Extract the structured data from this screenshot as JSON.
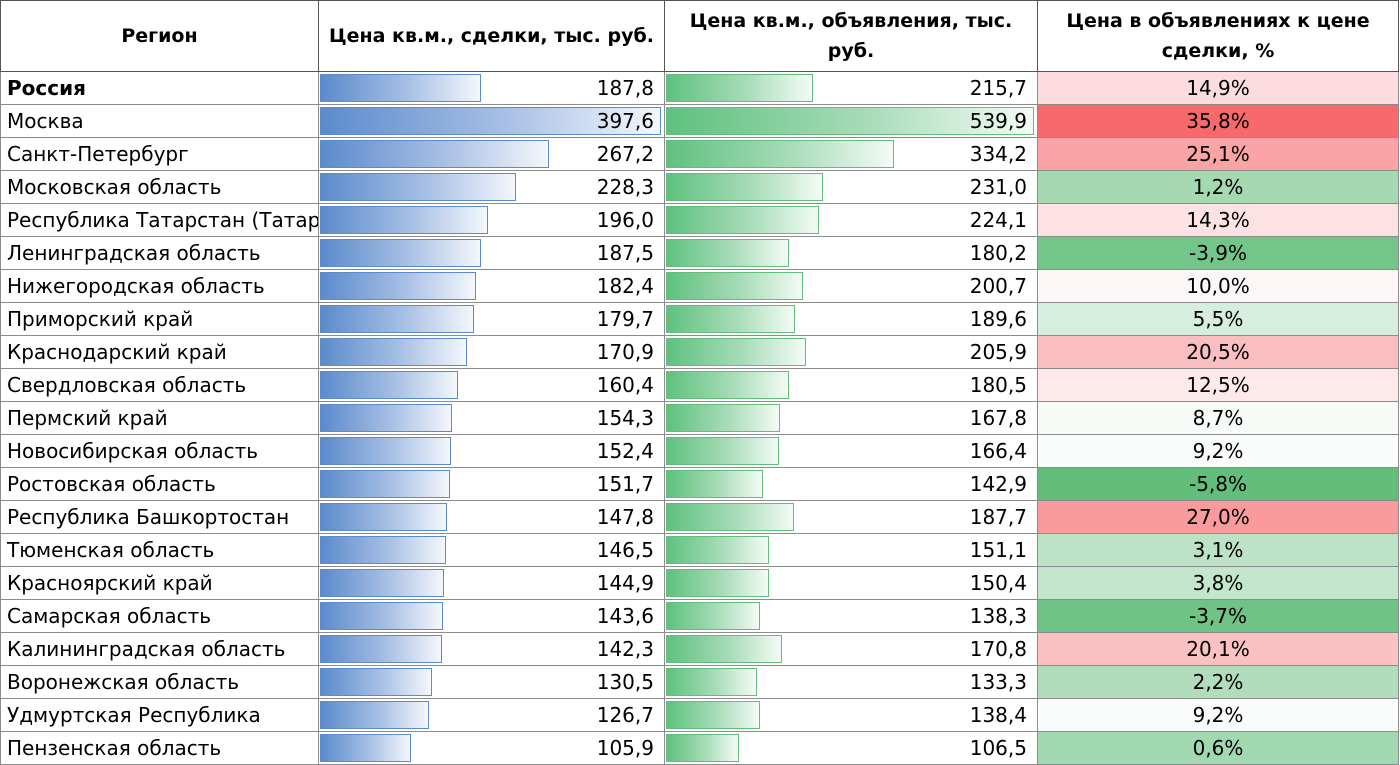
{
  "headers": {
    "region": "Регион",
    "deal": "Цена кв.м., сделки, тыс. руб.",
    "ads": "Цена кв.м., объявления, тыс. руб.",
    "ratio": "Цена в объявлениях к цене сделки, %"
  },
  "bar_colors": {
    "deal": "#5b8bcc",
    "ads": "#63be7b"
  },
  "deal_max": 397.6,
  "ads_max": 539.9,
  "rows": [
    {
      "region": "Россия",
      "deal": "187,8",
      "deal_value": 187.8,
      "ads": "215,7",
      "ads_value": 215.7,
      "ratio": "14,9%",
      "ratio_color": "#fcdcde"
    },
    {
      "region": "Москва",
      "deal": "397,6",
      "deal_value": 397.6,
      "ads": "539,9",
      "ads_value": 539.9,
      "ratio": "35,8%",
      "ratio_color": "#f8696b"
    },
    {
      "region": "Санкт-Петербург",
      "deal": "267,2",
      "deal_value": 267.2,
      "ads": "334,2",
      "ads_value": 334.2,
      "ratio": "25,1%",
      "ratio_color": "#faa4a6"
    },
    {
      "region": "Московская область",
      "deal": "228,3",
      "deal_value": 228.3,
      "ads": "231,0",
      "ads_value": 231.0,
      "ratio": "1,2%",
      "ratio_color": "#a5d9b1"
    },
    {
      "region": "Республика Татарстан (Татарстан)",
      "deal": "196,0",
      "deal_value": 196.0,
      "ads": "224,1",
      "ads_value": 224.1,
      "ratio": "14,3%",
      "ratio_color": "#fde2e4"
    },
    {
      "region": "Ленинградская область",
      "deal": "187,5",
      "deal_value": 187.5,
      "ads": "180,2",
      "ads_value": 180.2,
      "ratio": "-3,9%",
      "ratio_color": "#74c58a"
    },
    {
      "region": "Нижегородская область",
      "deal": "182,4",
      "deal_value": 182.4,
      "ads": "200,7",
      "ads_value": 200.7,
      "ratio": "10,0%",
      "ratio_color": "#fdf7f8"
    },
    {
      "region": "Приморский край",
      "deal": "179,7",
      "deal_value": 179.7,
      "ads": "189,6",
      "ads_value": 189.6,
      "ratio": "5,5%",
      "ratio_color": "#d6eedd"
    },
    {
      "region": "Краснодарский край",
      "deal": "170,9",
      "deal_value": 170.9,
      "ads": "205,9",
      "ads_value": 205.9,
      "ratio": "20,5%",
      "ratio_color": "#fbbec0"
    },
    {
      "region": "Свердловская область",
      "deal": "160,4",
      "deal_value": 160.4,
      "ads": "180,5",
      "ads_value": 180.5,
      "ratio": "12,5%",
      "ratio_color": "#fde8ea"
    },
    {
      "region": "Пермский край",
      "deal": "154,3",
      "deal_value": 154.3,
      "ads": "167,8",
      "ads_value": 167.8,
      "ratio": "8,7%",
      "ratio_color": "#f6fbf8"
    },
    {
      "region": "Новосибирская область",
      "deal": "152,4",
      "deal_value": 152.4,
      "ads": "166,4",
      "ads_value": 166.4,
      "ratio": "9,2%",
      "ratio_color": "#fafcfb"
    },
    {
      "region": "Ростовская область",
      "deal": "151,7",
      "deal_value": 151.7,
      "ads": "142,9",
      "ads_value": 142.9,
      "ratio": "-5,8%",
      "ratio_color": "#63be7b"
    },
    {
      "region": "Республика Башкортостан",
      "deal": "147,8",
      "deal_value": 147.8,
      "ads": "187,7",
      "ads_value": 187.7,
      "ratio": "27,0%",
      "ratio_color": "#f99b9d"
    },
    {
      "region": "Тюменская область",
      "deal": "146,5",
      "deal_value": 146.5,
      "ads": "151,1",
      "ads_value": 151.1,
      "ratio": "3,1%",
      "ratio_color": "#bde3c7"
    },
    {
      "region": "Красноярский край",
      "deal": "144,9",
      "deal_value": 144.9,
      "ads": "150,4",
      "ads_value": 150.4,
      "ratio": "3,8%",
      "ratio_color": "#c4e6cd"
    },
    {
      "region": "Самарская область",
      "deal": "143,6",
      "deal_value": 143.6,
      "ads": "138,3",
      "ads_value": 138.3,
      "ratio": "-3,7%",
      "ratio_color": "#6ec385"
    },
    {
      "region": "Калининградская область",
      "deal": "142,3",
      "deal_value": 142.3,
      "ads": "170,8",
      "ads_value": 170.8,
      "ratio": "20,1%",
      "ratio_color": "#fbc1c3"
    },
    {
      "region": "Воронежская область",
      "deal": "130,5",
      "deal_value": 130.5,
      "ads": "133,3",
      "ads_value": 133.3,
      "ratio": "2,2%",
      "ratio_color": "#b2ddbd"
    },
    {
      "region": "Удмуртская Республика",
      "deal": "126,7",
      "deal_value": 126.7,
      "ads": "138,4",
      "ads_value": 138.4,
      "ratio": "9,2%",
      "ratio_color": "#fafcfb"
    },
    {
      "region": "Пензенская область",
      "deal": "105,9",
      "deal_value": 105.9,
      "ads": "106,5",
      "ads_value": 106.5,
      "ratio": "0,6%",
      "ratio_color": "#a2d8b0"
    }
  ]
}
